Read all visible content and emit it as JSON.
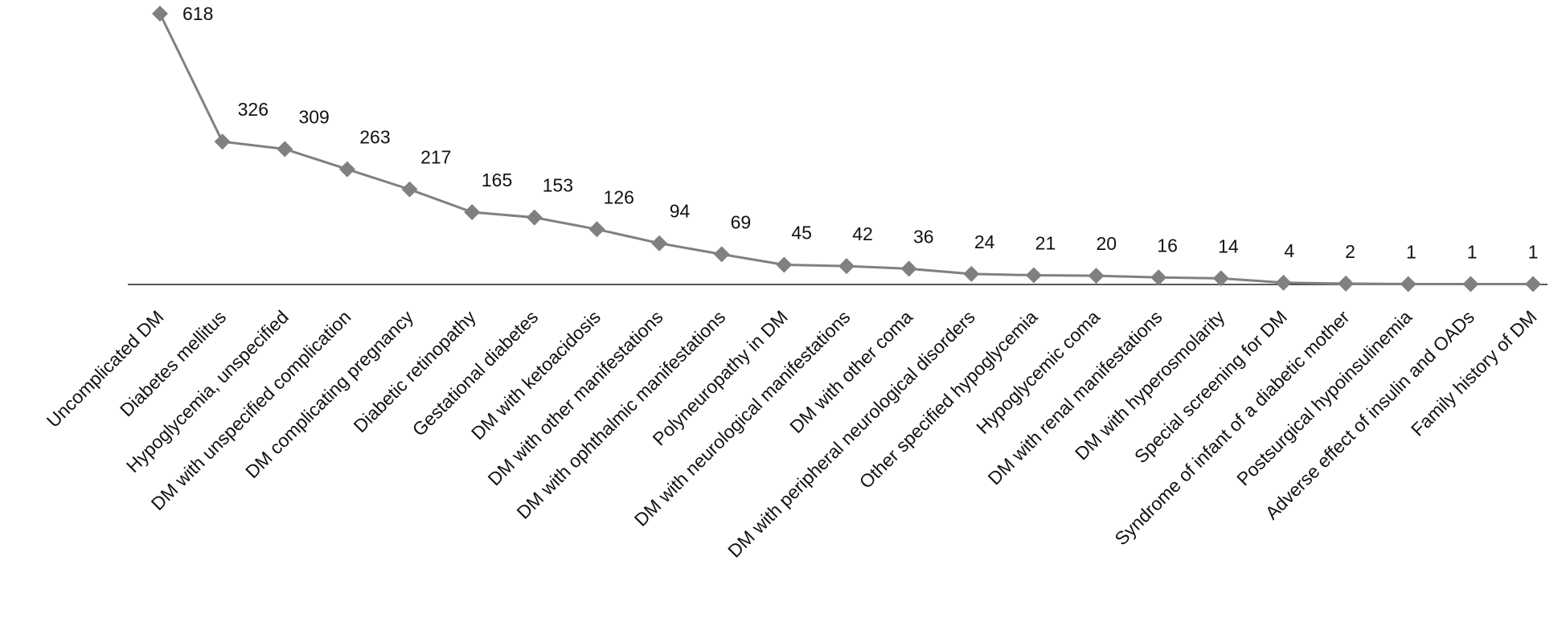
{
  "chart_data": {
    "type": "line",
    "categories": [
      "Uncomplicated DM",
      "Diabetes mellitus",
      "Hypoglycemia, unspecified",
      "DM with unspecified complication",
      "DM complicating pregnancy",
      "Diabetic retinopathy",
      "Gestational diabetes",
      "DM with ketoacidosis",
      "DM with other manifestations",
      "DM with ophthalmic manifestations",
      "Polyneuropathy in DM",
      "DM with neurological manifestations",
      "DM with other coma",
      "DM with peripheral neurological disorders",
      "Other specified hypoglycemia",
      "Hypoglycemic coma",
      "DM with renal manifestations",
      "DM with hyperosmolarity",
      "Special screening for DM",
      "Syndrome of infant of a diabetic mother",
      "Postsurgical hypoinsulinemia",
      "Adverse effect of insulin and OADs",
      "Family history of DM"
    ],
    "values": [
      618,
      326,
      309,
      263,
      217,
      165,
      153,
      126,
      94,
      69,
      45,
      42,
      36,
      24,
      21,
      20,
      16,
      14,
      4,
      2,
      1,
      1,
      1
    ],
    "color": "#808080"
  }
}
